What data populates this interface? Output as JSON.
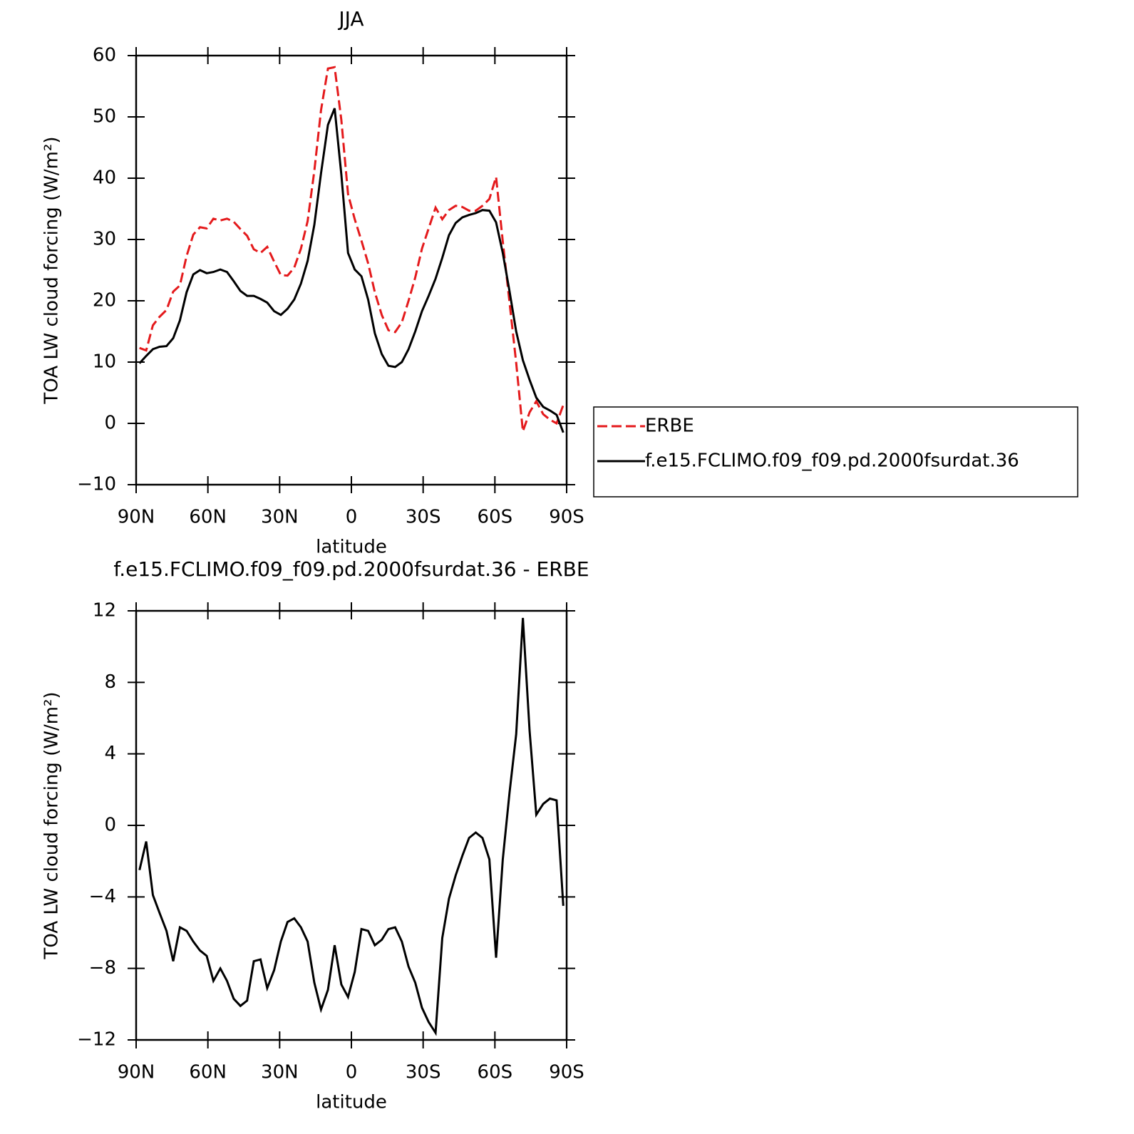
{
  "chart_data": [
    {
      "type": "line",
      "title": "JJA",
      "xlabel": "latitude",
      "ylabel": "TOA LW cloud forcing (W/m²)",
      "x": [
        88.6,
        85.8,
        83.0,
        80.2,
        77.3,
        74.5,
        71.7,
        68.9,
        66.1,
        63.3,
        60.5,
        57.7,
        54.8,
        52.0,
        49.2,
        46.4,
        43.6,
        40.8,
        38.0,
        35.2,
        32.3,
        29.5,
        26.7,
        23.9,
        21.1,
        18.3,
        15.5,
        12.7,
        9.8,
        7.0,
        4.2,
        1.4,
        -1.4,
        -4.2,
        -7.0,
        -9.8,
        -12.7,
        -15.5,
        -18.3,
        -21.1,
        -23.9,
        -26.7,
        -29.5,
        -32.3,
        -35.2,
        -38.0,
        -40.8,
        -43.6,
        -46.4,
        -49.2,
        -52.0,
        -54.8,
        -57.7,
        -60.5,
        -63.3,
        -66.1,
        -68.9,
        -71.7,
        -74.5,
        -77.3,
        -80.2,
        -83.0,
        -85.8,
        -88.6
      ],
      "series": [
        {
          "name": "ERBE",
          "color": "#e41a1c",
          "style": "dashed",
          "values": [
            12.3,
            11.9,
            16.0,
            17.4,
            18.5,
            21.5,
            22.5,
            27.3,
            30.8,
            32.0,
            31.8,
            33.4,
            33.1,
            33.4,
            32.9,
            31.7,
            30.6,
            28.4,
            27.8,
            28.8,
            26.4,
            24.2,
            24.1,
            25.4,
            28.5,
            33.0,
            41.2,
            51.1,
            57.9,
            58.1,
            49.5,
            37.4,
            33.3,
            29.8,
            26.1,
            21.4,
            17.7,
            15.2,
            14.9,
            16.5,
            20.0,
            23.8,
            28.5,
            31.8,
            35.2,
            33.3,
            34.8,
            35.5,
            35.3,
            34.7,
            34.7,
            35.5,
            36.6,
            40.2,
            29.7,
            19.8,
            9.9,
            -1.3,
            1.8,
            3.6,
            1.5,
            0.6,
            0.0,
            3.0
          ]
        },
        {
          "name": "f.e15.FCLIMO.f09_f09.pd.2000fsurdat.36",
          "color": "#000000",
          "style": "solid",
          "values": [
            9.8,
            11.0,
            12.1,
            12.5,
            12.6,
            13.9,
            16.8,
            21.4,
            24.3,
            25.0,
            24.5,
            24.7,
            25.1,
            24.7,
            23.2,
            21.6,
            20.8,
            20.8,
            20.3,
            19.7,
            18.3,
            17.7,
            18.7,
            20.2,
            22.8,
            26.5,
            32.4,
            40.8,
            48.7,
            51.4,
            40.6,
            27.8,
            25.1,
            24.0,
            20.2,
            14.7,
            11.3,
            9.4,
            9.2,
            10.0,
            12.1,
            15.0,
            18.3,
            20.8,
            23.6,
            27.0,
            30.7,
            32.7,
            33.6,
            34.0,
            34.3,
            34.8,
            34.7,
            32.8,
            27.8,
            21.6,
            15.0,
            10.3,
            7.1,
            4.2,
            2.7,
            2.1,
            1.4,
            -1.5
          ]
        }
      ],
      "xlim": [
        90,
        -90
      ],
      "xticks": [
        {
          "value": 90,
          "label": "90N"
        },
        {
          "value": 60,
          "label": "60N"
        },
        {
          "value": 30,
          "label": "30N"
        },
        0,
        {
          "value": -30,
          "label": "30S"
        },
        {
          "value": -60,
          "label": "60S"
        },
        {
          "value": -90,
          "label": "90S"
        }
      ],
      "ylim": [
        -10,
        60
      ],
      "yticks": [
        {
          "value": -10,
          "label": "−10"
        },
        0,
        10,
        20,
        30,
        40,
        50,
        60
      ],
      "legend": "outside-right"
    },
    {
      "type": "line",
      "title": "f.e15.FCLIMO.f09_f09.pd.2000fsurdat.36 - ERBE",
      "xlabel": "latitude",
      "ylabel": "TOA LW cloud forcing (W/m²)",
      "x": [
        88.6,
        85.8,
        83.0,
        80.2,
        77.3,
        74.5,
        71.7,
        68.9,
        66.1,
        63.3,
        60.5,
        57.7,
        54.8,
        52.0,
        49.2,
        46.4,
        43.6,
        40.8,
        38.0,
        35.2,
        32.3,
        29.5,
        26.7,
        23.9,
        21.1,
        18.3,
        15.5,
        12.7,
        9.8,
        7.0,
        4.2,
        1.4,
        -1.4,
        -4.2,
        -7.0,
        -9.8,
        -12.7,
        -15.5,
        -18.3,
        -21.1,
        -23.9,
        -26.7,
        -29.5,
        -32.3,
        -35.2,
        -38.0,
        -40.8,
        -43.6,
        -46.4,
        -49.2,
        -52.0,
        -54.8,
        -57.7,
        -60.5,
        -63.3,
        -66.1,
        -68.9,
        -71.7,
        -74.5,
        -77.3,
        -80.2,
        -83.0,
        -85.8,
        -88.6
      ],
      "series": [
        {
          "color": "#000000",
          "style": "solid",
          "values": [
            -2.5,
            -0.9,
            -3.9,
            -4.9,
            -5.9,
            -7.6,
            -5.7,
            -5.9,
            -6.5,
            -7.0,
            -7.3,
            -8.7,
            -8.0,
            -8.7,
            -9.7,
            -10.1,
            -9.8,
            -7.6,
            -7.5,
            -9.1,
            -8.1,
            -6.5,
            -5.4,
            -5.2,
            -5.7,
            -6.5,
            -8.8,
            -10.3,
            -9.2,
            -6.7,
            -8.9,
            -9.6,
            -8.2,
            -5.8,
            -5.9,
            -6.7,
            -6.4,
            -5.8,
            -5.7,
            -6.5,
            -7.9,
            -8.8,
            -10.2,
            -11.0,
            -11.6,
            -6.3,
            -4.1,
            -2.8,
            -1.7,
            -0.7,
            -0.4,
            -0.7,
            -1.9,
            -7.4,
            -1.9,
            1.8,
            5.1,
            11.6,
            5.3,
            0.6,
            1.2,
            1.5,
            1.4,
            -4.5
          ]
        }
      ],
      "xlim": [
        90,
        -90
      ],
      "xticks": [
        {
          "value": 90,
          "label": "90N"
        },
        {
          "value": 60,
          "label": "60N"
        },
        {
          "value": 30,
          "label": "30N"
        },
        0,
        {
          "value": -30,
          "label": "30S"
        },
        {
          "value": -60,
          "label": "60S"
        },
        {
          "value": -90,
          "label": "90S"
        }
      ],
      "ylim": [
        -12,
        12
      ],
      "yticks": [
        {
          "value": -12,
          "label": "−12"
        },
        {
          "value": -8,
          "label": "−8"
        },
        {
          "value": -4,
          "label": "−4"
        },
        0,
        4,
        8,
        12
      ]
    }
  ]
}
